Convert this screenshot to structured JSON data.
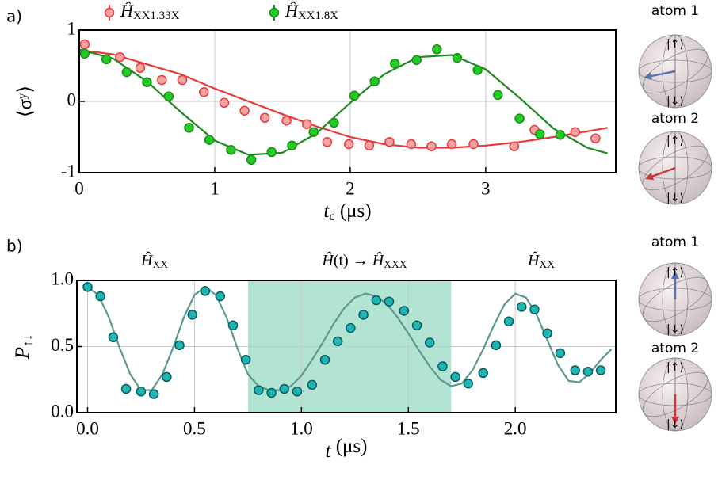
{
  "panel_labels": [
    "a)",
    "b)"
  ],
  "bloch_spheres": [
    {
      "label": "atom 1",
      "up": "|↑⟩",
      "down": "|↓⟩"
    },
    {
      "label": "atom 2",
      "up": "|↑⟩",
      "down": "|↓⟩"
    },
    {
      "label": "atom 1",
      "up": "|↑⟩",
      "down": "|↓⟩"
    },
    {
      "label": "atom 2",
      "up": "|↑⟩",
      "down": "|↓⟩"
    }
  ],
  "chart_data": [
    {
      "type": "scatter",
      "xlabel": "tc (μs)",
      "ylabel": "⟨σʸ⟩",
      "xlim": [
        0,
        3.96
      ],
      "ylim": [
        -1,
        1
      ],
      "xticks": [
        0,
        1,
        2,
        3
      ],
      "yticks": [
        -1,
        0,
        1
      ],
      "grid": true,
      "legend": "above",
      "series": [
        {
          "name": "ĤXX1.33X",
          "color": "#e83a3a",
          "fill": "#f7a3a3",
          "x": [
            0.04,
            0.3,
            0.45,
            0.61,
            0.76,
            0.92,
            1.07,
            1.22,
            1.37,
            1.53,
            1.68,
            1.83,
            1.99,
            2.14,
            2.29,
            2.45,
            2.6,
            2.75,
            2.91,
            3.21,
            3.36,
            3.66,
            3.81
          ],
          "values": [
            0.8,
            0.62,
            0.47,
            0.3,
            0.3,
            0.13,
            -0.02,
            -0.13,
            -0.23,
            -0.27,
            -0.32,
            -0.57,
            -0.6,
            -0.62,
            -0.57,
            -0.6,
            -0.63,
            -0.6,
            -0.6,
            -0.63,
            -0.4,
            -0.43,
            -0.52
          ],
          "fit": {
            "x": [
              0,
              0.25,
              0.5,
              0.75,
              1.0,
              1.25,
              1.5,
              1.75,
              2.0,
              2.25,
              2.5,
              2.75,
              3.0,
              3.25,
              3.5,
              3.75,
              3.9
            ],
            "values": [
              0.72,
              0.66,
              0.52,
              0.38,
              0.18,
              0.0,
              -0.18,
              -0.35,
              -0.5,
              -0.6,
              -0.65,
              -0.65,
              -0.62,
              -0.57,
              -0.5,
              -0.42,
              -0.37
            ]
          }
        },
        {
          "name": "ĤXX1.8X",
          "color": "#1f8a1f",
          "fill": "#22cc22",
          "x": [
            0.04,
            0.2,
            0.35,
            0.5,
            0.66,
            0.81,
            0.96,
            1.12,
            1.27,
            1.42,
            1.57,
            1.73,
            1.88,
            2.03,
            2.18,
            2.33,
            2.49,
            2.64,
            2.79,
            2.94,
            3.09,
            3.25,
            3.4,
            3.55
          ],
          "values": [
            0.67,
            0.59,
            0.41,
            0.27,
            0.07,
            -0.37,
            -0.54,
            -0.68,
            -0.82,
            -0.71,
            -0.62,
            -0.43,
            -0.3,
            0.08,
            0.28,
            0.53,
            0.58,
            0.73,
            0.61,
            0.44,
            0.09,
            -0.24,
            -0.46,
            -0.47
          ],
          "fit": {
            "x": [
              0,
              0.25,
              0.5,
              0.75,
              1.0,
              1.25,
              1.5,
              1.75,
              2.0,
              2.25,
              2.5,
              2.75,
              3.0,
              3.25,
              3.5,
              3.75,
              3.9
            ],
            "values": [
              0.73,
              0.6,
              0.28,
              -0.15,
              -0.55,
              -0.75,
              -0.72,
              -0.45,
              -0.02,
              0.38,
              0.62,
              0.65,
              0.45,
              0.05,
              -0.38,
              -0.65,
              -0.73
            ]
          }
        }
      ]
    },
    {
      "type": "scatter",
      "xlabel": "t (μs)",
      "ylabel": "P↑↓",
      "xlim": [
        -0.05,
        2.47
      ],
      "ylim": [
        0,
        1
      ],
      "xticks": [
        {
          "value": 0,
          "label": "0.0"
        },
        0.5,
        {
          "value": 1,
          "label": "1.0"
        },
        1.5,
        {
          "value": 2,
          "label": "2.0"
        }
      ],
      "yticks": [
        {
          "value": 0,
          "label": "0.0"
        },
        0.5,
        {
          "value": 1,
          "label": "1.0"
        }
      ],
      "grid": true,
      "annotations": [
        "ĤXX",
        "Ĥ(t) → ĤXXX",
        "ĤXX"
      ],
      "shade": {
        "from": 0.75,
        "to": 1.7,
        "color": "#b3e3d2"
      },
      "series": [
        {
          "color": "#0b5c5c",
          "fill": "#1fb5b5",
          "line_color": "#5b9a8c",
          "x": [
            0,
            0.06,
            0.12,
            0.18,
            0.25,
            0.31,
            0.37,
            0.43,
            0.49,
            0.55,
            0.62,
            0.68,
            0.74,
            0.8,
            0.86,
            0.92,
            0.98,
            1.05,
            1.11,
            1.17,
            1.23,
            1.29,
            1.35,
            1.41,
            1.48,
            1.54,
            1.6,
            1.66,
            1.72,
            1.78,
            1.85,
            1.91,
            1.97,
            2.03,
            2.09,
            2.15,
            2.21,
            2.28,
            2.34,
            2.4
          ],
          "values": [
            0.95,
            0.88,
            0.57,
            0.18,
            0.16,
            0.14,
            0.27,
            0.51,
            0.74,
            0.92,
            0.88,
            0.66,
            0.4,
            0.17,
            0.15,
            0.18,
            0.16,
            0.21,
            0.4,
            0.54,
            0.64,
            0.74,
            0.85,
            0.84,
            0.77,
            0.66,
            0.53,
            0.35,
            0.27,
            0.22,
            0.3,
            0.51,
            0.69,
            0.8,
            0.78,
            0.6,
            0.45,
            0.32,
            0.31,
            0.32
          ],
          "fit": {
            "x": [
              0,
              0.05,
              0.1,
              0.15,
              0.2,
              0.25,
              0.3,
              0.35,
              0.4,
              0.45,
              0.5,
              0.55,
              0.6,
              0.65,
              0.7,
              0.75,
              0.8,
              0.85,
              0.9,
              0.95,
              1.0,
              1.05,
              1.1,
              1.15,
              1.2,
              1.25,
              1.3,
              1.35,
              1.4,
              1.45,
              1.5,
              1.55,
              1.6,
              1.65,
              1.7,
              1.75,
              1.8,
              1.85,
              1.9,
              1.95,
              2.0,
              2.05,
              2.1,
              2.15,
              2.2,
              2.25,
              2.3,
              2.35,
              2.4,
              2.45
            ],
            "values": [
              0.95,
              0.89,
              0.72,
              0.49,
              0.29,
              0.17,
              0.17,
              0.29,
              0.49,
              0.72,
              0.89,
              0.95,
              0.89,
              0.72,
              0.49,
              0.29,
              0.2,
              0.17,
              0.17,
              0.2,
              0.28,
              0.4,
              0.53,
              0.67,
              0.79,
              0.87,
              0.9,
              0.88,
              0.82,
              0.72,
              0.6,
              0.47,
              0.35,
              0.25,
              0.2,
              0.22,
              0.32,
              0.48,
              0.66,
              0.82,
              0.9,
              0.87,
              0.74,
              0.55,
              0.36,
              0.24,
              0.23,
              0.3,
              0.4,
              0.48
            ]
          }
        }
      ]
    }
  ]
}
